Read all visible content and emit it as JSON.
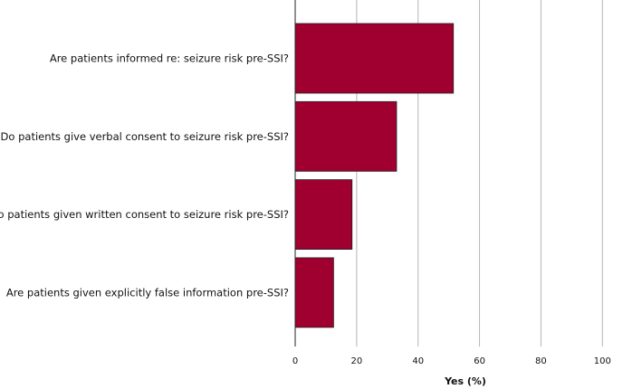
{
  "chart_data": {
    "type": "bar",
    "orientation": "horizontal",
    "categories": [
      "Are patients informed re: seizure risk pre-SSI?",
      "Do patients give verbal consent to seizure risk pre-SSI?",
      "Do patients given written consent to seizure risk pre-SSI?",
      "Are patients given explicitly false information pre-SSI?"
    ],
    "values": [
      51.5,
      33,
      18.5,
      12.5
    ],
    "title": "",
    "xlabel": "Yes (%)",
    "ylabel": "",
    "xlim": [
      0,
      112
    ],
    "xticks": [
      "0",
      "20",
      "40",
      "60",
      "80",
      "100"
    ],
    "grid": "vertical",
    "bar_color": "#a0002f",
    "legend": "none"
  }
}
